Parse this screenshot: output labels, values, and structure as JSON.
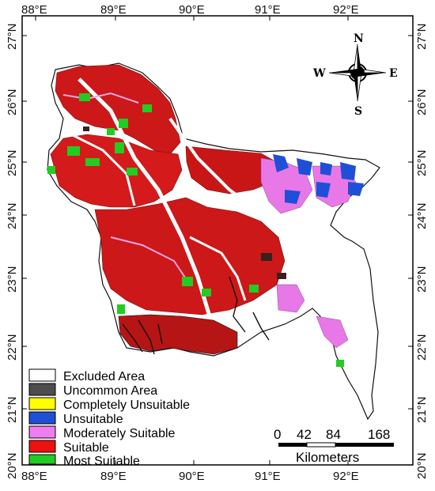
{
  "longitude_labels": [
    "88°E",
    "89°E",
    "90°E",
    "91°E",
    "92°E"
  ],
  "latitude_labels": [
    "27°N",
    "26°N",
    "25°N",
    "24°N",
    "23°N",
    "22°N",
    "21°N",
    "20°N"
  ],
  "compass": {
    "n": "N",
    "s": "S",
    "e": "E",
    "w": "W"
  },
  "legend": [
    {
      "label": "Excluded Area",
      "color": "#ffffff"
    },
    {
      "label": "Uncommon Area",
      "color": "#4d4d4d"
    },
    {
      "label": "Completely Unsuitable",
      "color": "#ffff00"
    },
    {
      "label": "Unsuitable",
      "color": "#1f4fd6"
    },
    {
      "label": "Moderately Suitable",
      "color": "#f07cf0"
    },
    {
      "label": "Suitable",
      "color": "#ee1111"
    },
    {
      "label": "Most Suitable",
      "color": "#22cc22"
    }
  ],
  "scale_bar": {
    "ticks": [
      "0",
      "42",
      "84",
      "168"
    ],
    "unit": "Kilometers"
  }
}
